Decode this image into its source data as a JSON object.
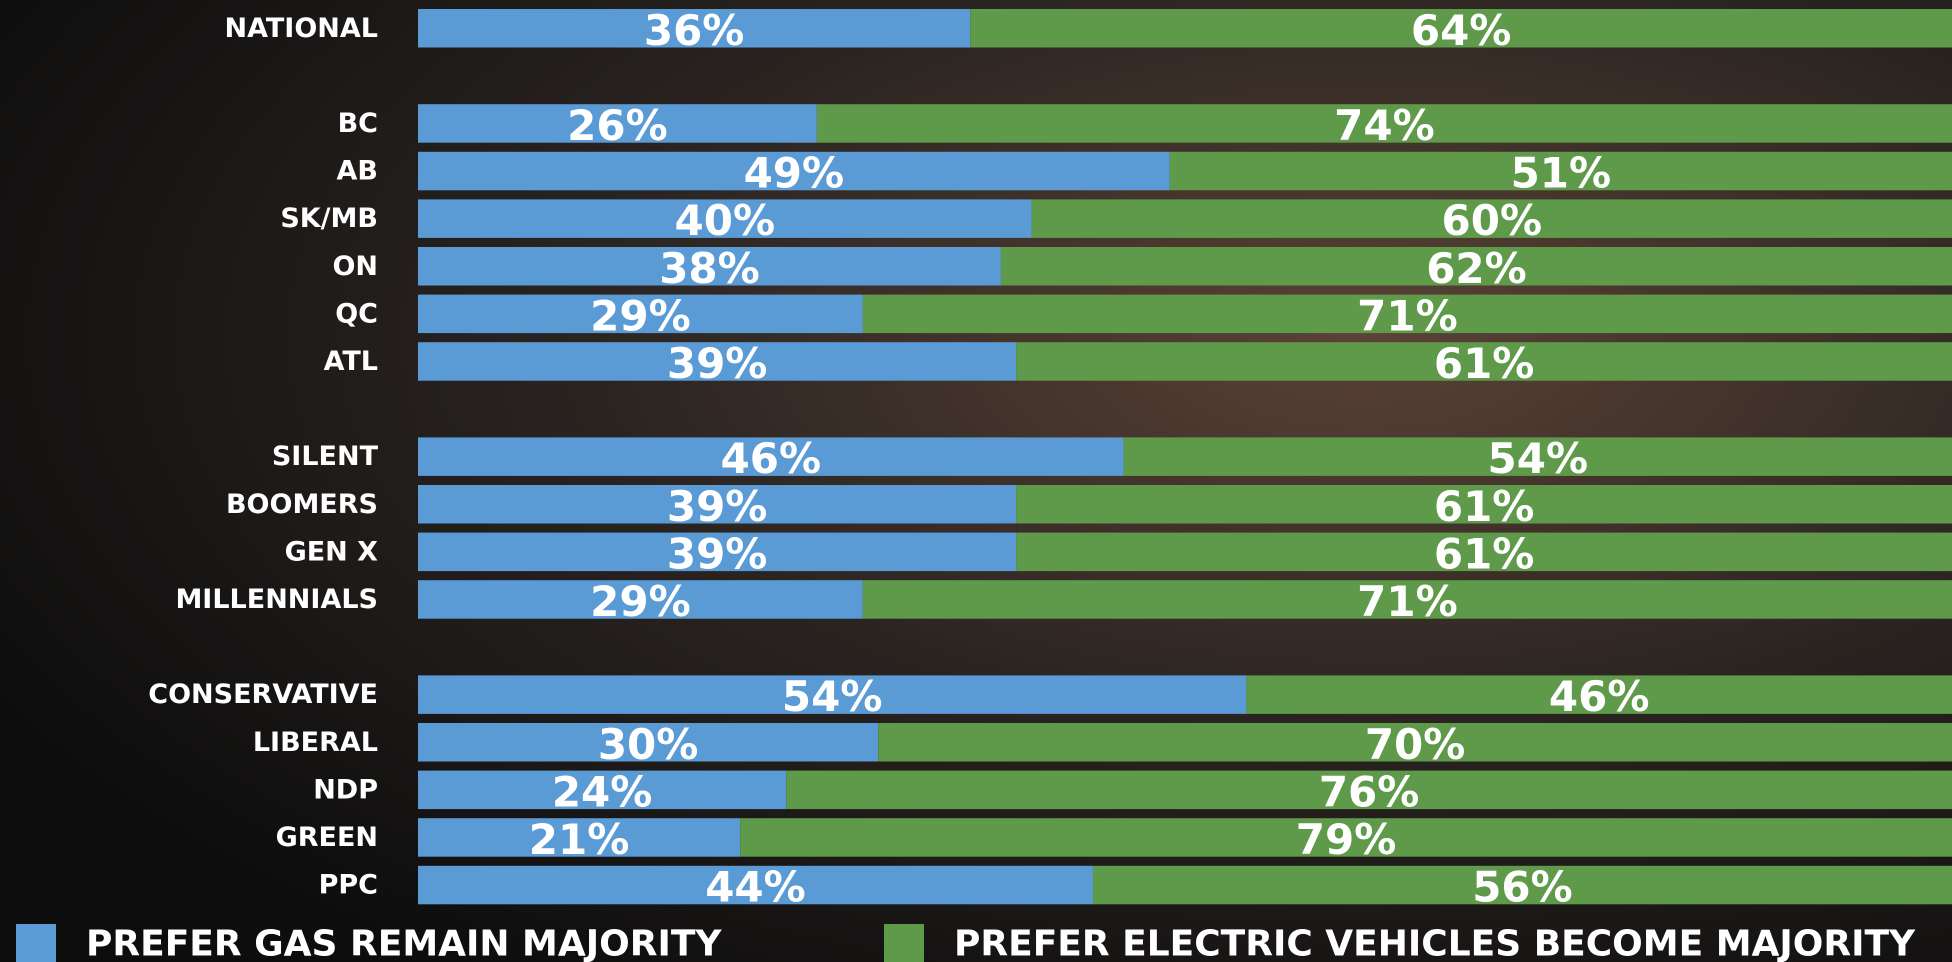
{
  "chart_data": {
    "type": "stacked-bar",
    "categories": [
      "NATIONAL",
      "BC",
      "AB",
      "SK/MB",
      "ON",
      "QC",
      "ATL",
      "SILENT",
      "BOOMERS",
      "GEN X",
      "MILLENNIALS",
      "CONSERVATIVE",
      "LIBERAL",
      "NDP",
      "GREEN",
      "PPC"
    ],
    "series": [
      {
        "name": "PREFER GAS REMAIN MAJORITY",
        "color": "#5b9bd5",
        "values": [
          36,
          26,
          49,
          40,
          38,
          29,
          39,
          46,
          39,
          39,
          29,
          54,
          30,
          24,
          21,
          44
        ],
        "value_labels": [
          "36%",
          "26%",
          "49%",
          "40%",
          "38%",
          "29%",
          "39%",
          "46%",
          "39%",
          "39%",
          "29%",
          "54%",
          "30%",
          "24%",
          "21%",
          "44%"
        ]
      },
      {
        "name": "PREFER ELECTRIC VEHICLES BECOME MAJORITY",
        "color": "#5e9a49",
        "values": [
          64,
          74,
          51,
          60,
          62,
          71,
          61,
          54,
          61,
          61,
          71,
          46,
          70,
          76,
          79,
          56
        ],
        "value_labels": [
          "64%",
          "74%",
          "51%",
          "60%",
          "62%",
          "71%",
          "61%",
          "54%",
          "61%",
          "61%",
          "71%",
          "46%",
          "70%",
          "76%",
          "79%",
          "56%"
        ]
      }
    ],
    "legend": "bottom"
  }
}
